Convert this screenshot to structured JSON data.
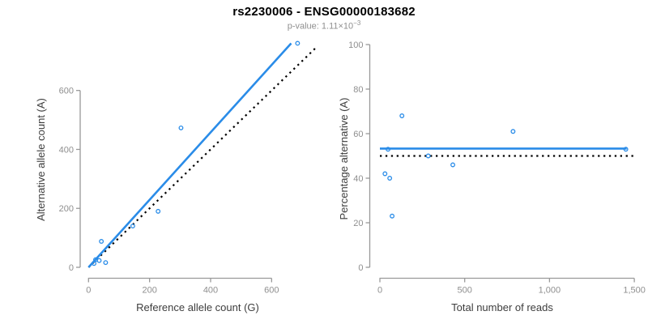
{
  "header": {
    "title": "rs2230006 - ENSG00000183682",
    "subtitle_prefix": "p-value: 1.11×10",
    "subtitle_exponent": "−3"
  },
  "colors": {
    "accent_blue": "#2a8ce8",
    "axis_gray": "#999999",
    "tick_label_gray": "#8f8f8f",
    "axis_title_color": "#3d3d3d",
    "reference_line_black": "#000000"
  },
  "chart_data": [
    {
      "type": "scatter",
      "title": "",
      "xlabel": "Reference allele count (G)",
      "ylabel": "Alternative allele count (A)",
      "xlim": [
        0,
        745
      ],
      "ylim": [
        0,
        765
      ],
      "xticks": [
        0,
        200,
        400,
        600
      ],
      "xtick_labels": [
        "0",
        "200",
        "400",
        "600"
      ],
      "yticks": [
        0,
        200,
        400,
        600
      ],
      "ytick_labels": [
        "0",
        "200",
        "400",
        "600"
      ],
      "grid": false,
      "legend": "none",
      "points": [
        [
          18,
          13
        ],
        [
          23,
          26
        ],
        [
          35,
          23
        ],
        [
          56,
          16
        ],
        [
          42,
          88
        ],
        [
          145,
          140
        ],
        [
          228,
          190
        ],
        [
          303,
          473
        ],
        [
          685,
          760
        ]
      ],
      "lines": [
        {
          "name": "identity-line",
          "style": "dotted",
          "color": "#000000",
          "x0": 0,
          "y0": 0,
          "x1": 745,
          "y1": 745
        },
        {
          "name": "fit-line",
          "style": "solid",
          "color": "#2a8ce8",
          "x0": 0,
          "y0": 0,
          "x1": 664,
          "y1": 760
        }
      ]
    },
    {
      "type": "scatter",
      "title": "",
      "xlabel": "Total number of reads",
      "ylabel": "Percentage alternative (A)",
      "xlim": [
        0,
        1510
      ],
      "ylim": [
        0,
        100
      ],
      "xticks": [
        0,
        500,
        1000,
        1500
      ],
      "xtick_labels": [
        "0",
        "500",
        "1,000",
        "1,500"
      ],
      "yticks": [
        0,
        20,
        40,
        60,
        80,
        100
      ],
      "ytick_labels": [
        "0",
        "20",
        "40",
        "60",
        "80",
        "100"
      ],
      "grid": false,
      "legend": "none",
      "points": [
        [
          30,
          42
        ],
        [
          48,
          53
        ],
        [
          58,
          40
        ],
        [
          72,
          23
        ],
        [
          130,
          68
        ],
        [
          285,
          50
        ],
        [
          430,
          46
        ],
        [
          785,
          61
        ],
        [
          1450,
          53
        ]
      ],
      "lines": [
        {
          "name": "null-line",
          "style": "dotted",
          "color": "#000000",
          "x0": 0,
          "y0": 50,
          "x1": 1505,
          "y1": 50
        },
        {
          "name": "fit-line",
          "style": "solid",
          "color": "#2a8ce8",
          "x0": 0,
          "y0": 53.3,
          "x1": 1455,
          "y1": 53.3
        }
      ]
    }
  ]
}
